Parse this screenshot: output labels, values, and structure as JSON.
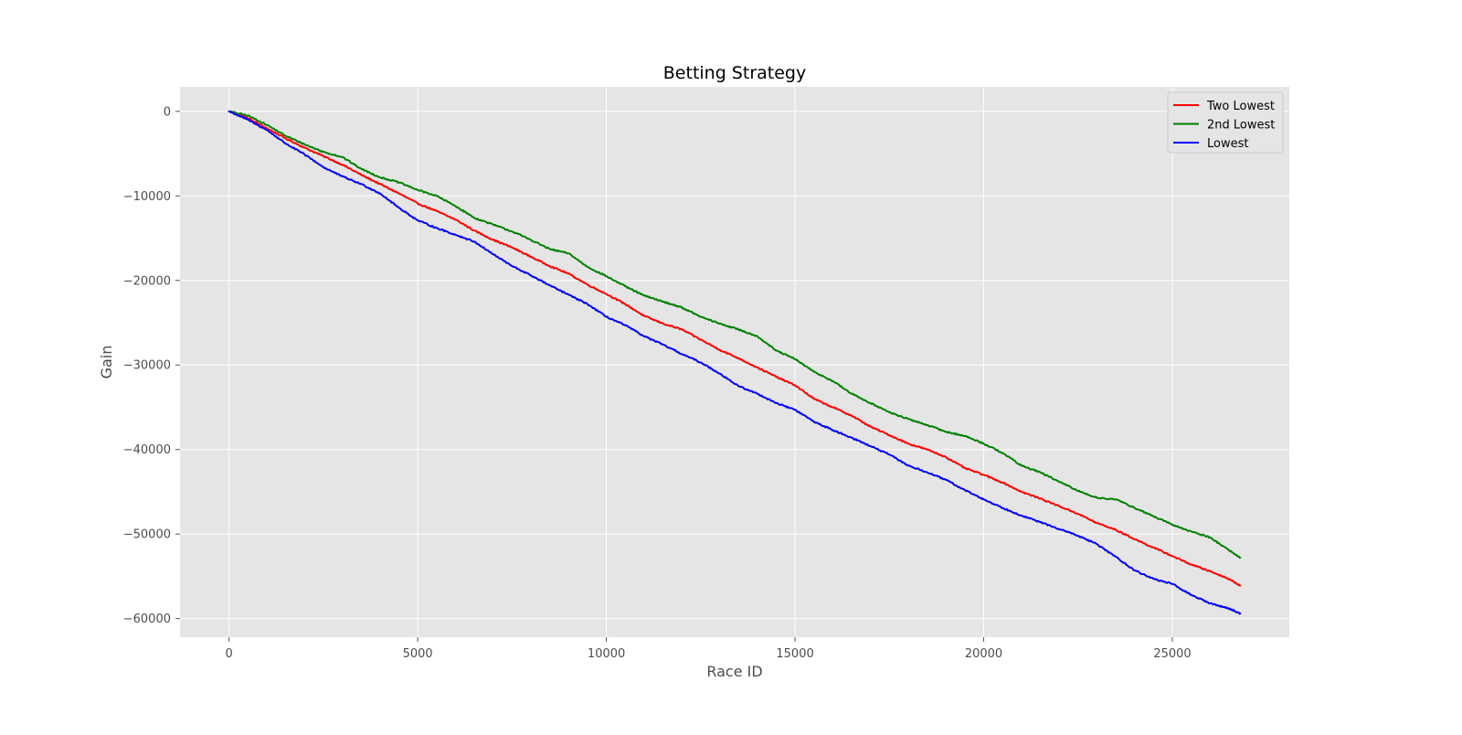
{
  "chart_data": {
    "type": "line",
    "title": "Betting Strategy",
    "xlabel": "Race ID",
    "ylabel": "Gain",
    "xlim": [
      -1300,
      28100
    ],
    "ylim": [
      -62200,
      2900
    ],
    "xticks": [
      0,
      5000,
      10000,
      15000,
      20000,
      25000
    ],
    "xtick_labels": [
      "0",
      "5000",
      "10000",
      "15000",
      "20000",
      "25000"
    ],
    "yticks": [
      0,
      -10000,
      -20000,
      -30000,
      -40000,
      -50000,
      -60000
    ],
    "ytick_labels": [
      "0",
      "−10000",
      "−20000",
      "−30000",
      "−40000",
      "−50000",
      "−60000"
    ],
    "grid": true,
    "legend_position": "top-right",
    "series": [
      {
        "name": "Two Lowest",
        "color": "#ff0000",
        "points": [
          [
            0,
            0
          ],
          [
            500,
            -800
          ],
          [
            1000,
            -2000
          ],
          [
            1500,
            -3200
          ],
          [
            2000,
            -4300
          ],
          [
            2500,
            -5300
          ],
          [
            3000,
            -6300
          ],
          [
            3500,
            -7500
          ],
          [
            4000,
            -8600
          ],
          [
            4500,
            -9700
          ],
          [
            5000,
            -10900
          ],
          [
            5500,
            -11800
          ],
          [
            6000,
            -12800
          ],
          [
            6500,
            -14100
          ],
          [
            7000,
            -15200
          ],
          [
            7500,
            -16100
          ],
          [
            8000,
            -17200
          ],
          [
            8500,
            -18300
          ],
          [
            9000,
            -19200
          ],
          [
            9500,
            -20500
          ],
          [
            10000,
            -21600
          ],
          [
            10500,
            -22800
          ],
          [
            11000,
            -24200
          ],
          [
            11500,
            -25100
          ],
          [
            12000,
            -25800
          ],
          [
            12500,
            -27000
          ],
          [
            13000,
            -28200
          ],
          [
            13500,
            -29200
          ],
          [
            14000,
            -30300
          ],
          [
            14500,
            -31400
          ],
          [
            15000,
            -32400
          ],
          [
            15500,
            -34000
          ],
          [
            16000,
            -35000
          ],
          [
            16500,
            -36000
          ],
          [
            17000,
            -37300
          ],
          [
            17500,
            -38300
          ],
          [
            18000,
            -39300
          ],
          [
            18500,
            -40000
          ],
          [
            19000,
            -40900
          ],
          [
            19500,
            -42200
          ],
          [
            20000,
            -43000
          ],
          [
            20500,
            -43900
          ],
          [
            21000,
            -45000
          ],
          [
            21500,
            -45800
          ],
          [
            22000,
            -46700
          ],
          [
            22500,
            -47600
          ],
          [
            23000,
            -48700
          ],
          [
            23500,
            -49500
          ],
          [
            24000,
            -50600
          ],
          [
            24500,
            -51600
          ],
          [
            25000,
            -52600
          ],
          [
            25500,
            -53600
          ],
          [
            26000,
            -54400
          ],
          [
            26500,
            -55300
          ],
          [
            26800,
            -56100
          ]
        ]
      },
      {
        "name": "2nd Lowest",
        "color": "#008000",
        "points": [
          [
            0,
            0
          ],
          [
            500,
            -500
          ],
          [
            1000,
            -1600
          ],
          [
            1500,
            -2900
          ],
          [
            2000,
            -3900
          ],
          [
            2500,
            -4800
          ],
          [
            3000,
            -5400
          ],
          [
            3500,
            -6800
          ],
          [
            4000,
            -7800
          ],
          [
            4500,
            -8400
          ],
          [
            5000,
            -9300
          ],
          [
            5500,
            -10000
          ],
          [
            6000,
            -11200
          ],
          [
            6500,
            -12600
          ],
          [
            7000,
            -13400
          ],
          [
            7500,
            -14200
          ],
          [
            8000,
            -15200
          ],
          [
            8500,
            -16300
          ],
          [
            9000,
            -16800
          ],
          [
            9500,
            -18400
          ],
          [
            10000,
            -19500
          ],
          [
            10500,
            -20700
          ],
          [
            11000,
            -21800
          ],
          [
            11500,
            -22500
          ],
          [
            12000,
            -23200
          ],
          [
            12500,
            -24300
          ],
          [
            13000,
            -25100
          ],
          [
            13500,
            -25800
          ],
          [
            14000,
            -26600
          ],
          [
            14500,
            -28300
          ],
          [
            15000,
            -29300
          ],
          [
            15500,
            -30800
          ],
          [
            16000,
            -31900
          ],
          [
            16500,
            -33400
          ],
          [
            17000,
            -34500
          ],
          [
            17500,
            -35600
          ],
          [
            18000,
            -36400
          ],
          [
            18500,
            -37100
          ],
          [
            19000,
            -37900
          ],
          [
            19500,
            -38400
          ],
          [
            20000,
            -39300
          ],
          [
            20500,
            -40400
          ],
          [
            21000,
            -41900
          ],
          [
            21500,
            -42700
          ],
          [
            22000,
            -43800
          ],
          [
            22500,
            -44900
          ],
          [
            23000,
            -45700
          ],
          [
            23500,
            -45900
          ],
          [
            24000,
            -46900
          ],
          [
            24500,
            -47900
          ],
          [
            25000,
            -48900
          ],
          [
            25500,
            -49700
          ],
          [
            26000,
            -50400
          ],
          [
            26500,
            -51900
          ],
          [
            26800,
            -52800
          ]
        ]
      },
      {
        "name": "Lowest",
        "color": "#0000ff",
        "points": [
          [
            0,
            0
          ],
          [
            500,
            -1000
          ],
          [
            1000,
            -2200
          ],
          [
            1500,
            -3800
          ],
          [
            2000,
            -5100
          ],
          [
            2500,
            -6600
          ],
          [
            3000,
            -7700
          ],
          [
            3500,
            -8600
          ],
          [
            4000,
            -9700
          ],
          [
            4500,
            -11400
          ],
          [
            5000,
            -12900
          ],
          [
            5500,
            -13800
          ],
          [
            6000,
            -14600
          ],
          [
            6500,
            -15400
          ],
          [
            7000,
            -16900
          ],
          [
            7500,
            -18300
          ],
          [
            8000,
            -19400
          ],
          [
            8500,
            -20600
          ],
          [
            9000,
            -21700
          ],
          [
            9500,
            -22800
          ],
          [
            10000,
            -24300
          ],
          [
            10500,
            -25300
          ],
          [
            11000,
            -26600
          ],
          [
            11500,
            -27600
          ],
          [
            12000,
            -28700
          ],
          [
            12500,
            -29700
          ],
          [
            13000,
            -31000
          ],
          [
            13500,
            -32500
          ],
          [
            14000,
            -33400
          ],
          [
            14500,
            -34500
          ],
          [
            15000,
            -35300
          ],
          [
            15500,
            -36700
          ],
          [
            16000,
            -37700
          ],
          [
            16500,
            -38600
          ],
          [
            17000,
            -39600
          ],
          [
            17500,
            -40600
          ],
          [
            18000,
            -41900
          ],
          [
            18500,
            -42700
          ],
          [
            19000,
            -43600
          ],
          [
            19500,
            -44800
          ],
          [
            20000,
            -45900
          ],
          [
            20500,
            -46900
          ],
          [
            21000,
            -47800
          ],
          [
            21500,
            -48600
          ],
          [
            22000,
            -49400
          ],
          [
            22500,
            -50200
          ],
          [
            23000,
            -51200
          ],
          [
            23500,
            -52700
          ],
          [
            24000,
            -54300
          ],
          [
            24500,
            -55300
          ],
          [
            25000,
            -55900
          ],
          [
            25500,
            -57200
          ],
          [
            26000,
            -58200
          ],
          [
            26500,
            -58800
          ],
          [
            26800,
            -59400
          ]
        ]
      }
    ]
  }
}
